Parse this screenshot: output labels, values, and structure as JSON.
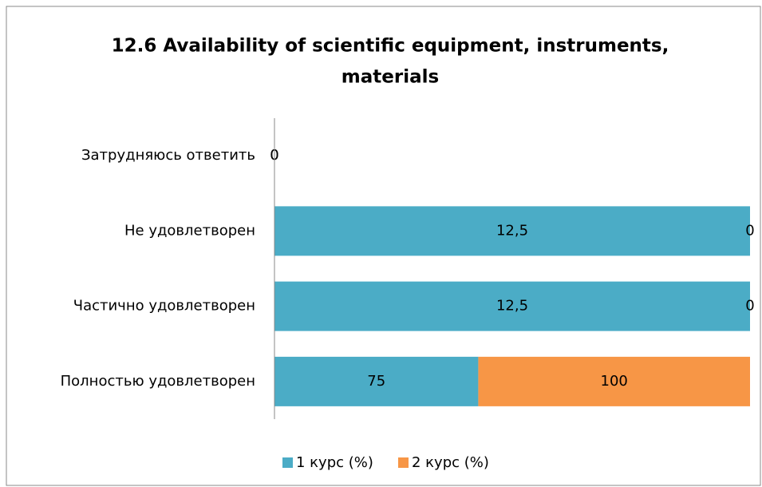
{
  "chart_data": {
    "type": "stacked_bar_100",
    "orientation": "horizontal",
    "title": [
      "12.6 Availability of scientific equipment, instruments,",
      "materials"
    ],
    "categories": [
      "Затрудняюсь ответить",
      "Не удовлетворен",
      "Частично удовлетворен",
      "Полностью удовлетворен"
    ],
    "series": [
      {
        "name": "1 курс (%)",
        "color": "#4bacc6",
        "values": [
          0,
          12.5,
          12.5,
          75
        ],
        "value_labels": [
          "0",
          "12,5",
          "12,5",
          "75"
        ]
      },
      {
        "name": "2 курс (%)",
        "color": "#f79646",
        "values": [
          0,
          0,
          0,
          100
        ],
        "value_labels": [
          "0",
          "0",
          "0",
          "100"
        ]
      }
    ],
    "legend": "bottom"
  }
}
